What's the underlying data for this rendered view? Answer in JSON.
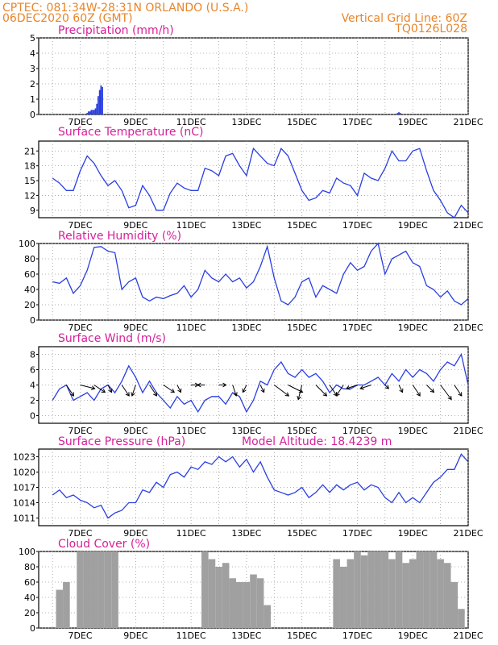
{
  "header": {
    "line1": "CPTEC:    081:34W-28:31N   ORLANDO (U.S.A.)",
    "line2": "06DEC2020 60Z (GMT)",
    "grid_note": "Vertical Grid Line: 60Z",
    "code": "TQ0126L028"
  },
  "colors": {
    "header": "#e8852a",
    "title": "#d6209a",
    "series": "#2a3fe0",
    "cloud": "#a0a0a0",
    "grid": "#9a9a9a"
  },
  "x_labels": [
    "7DEC",
    "9DEC",
    "11DEC",
    "13DEC",
    "15DEC",
    "17DEC",
    "19DEC",
    "21DEC"
  ],
  "chart_data": [
    {
      "id": "precip",
      "type": "bar",
      "title": "Precipitation (mm/h)",
      "x_unit": "days since 06DEC 00Z",
      "ylim": [
        0,
        5
      ],
      "yticks": [
        0,
        1,
        2,
        3,
        4,
        5
      ],
      "x": [
        1.25,
        1.3,
        1.35,
        1.4,
        1.45,
        1.5,
        1.55,
        1.6,
        1.65,
        1.7,
        1.75,
        1.8,
        12.45,
        12.5,
        12.55
      ],
      "values": [
        0.1,
        0.2,
        0.2,
        0.3,
        0.3,
        0.3,
        0.4,
        0.7,
        1.2,
        1.6,
        1.9,
        1.8,
        0.1,
        0.15,
        0.1
      ]
    },
    {
      "id": "temp",
      "type": "line",
      "title": "Surface Temperature (nC)",
      "ylim": [
        7.5,
        23
      ],
      "yticks": [
        9,
        12,
        15,
        18,
        21
      ],
      "x": [
        0,
        0.25,
        0.5,
        0.75,
        1.0,
        1.25,
        1.5,
        1.75,
        2.0,
        2.25,
        2.5,
        2.75,
        3.0,
        3.25,
        3.5,
        3.75,
        4.0,
        4.25,
        4.5,
        4.75,
        5.0,
        5.25,
        5.5,
        5.75,
        6.0,
        6.25,
        6.5,
        6.75,
        7.0,
        7.25,
        7.5,
        7.75,
        8.0,
        8.25,
        8.5,
        8.75,
        9.0,
        9.25,
        9.5,
        9.75,
        10.0,
        10.25,
        10.5,
        10.75,
        11.0,
        11.25,
        11.5,
        11.75,
        12.0,
        12.25,
        12.5,
        12.75,
        13.0,
        13.25,
        13.5,
        13.75,
        14.0,
        14.25,
        14.5,
        14.75,
        15.0
      ],
      "values": [
        15.5,
        14.5,
        13,
        13,
        17,
        20,
        18.5,
        16,
        14,
        15,
        13,
        9.5,
        10,
        14,
        12,
        9,
        9,
        12.5,
        14.5,
        13.5,
        13,
        13,
        17.5,
        17,
        16,
        20,
        20.5,
        18,
        16,
        21.5,
        20,
        18.5,
        18,
        21.5,
        20,
        16.5,
        13,
        11,
        11.5,
        13,
        12.5,
        15.5,
        14.5,
        14,
        12,
        16.5,
        15.5,
        15,
        17.5,
        21,
        19,
        19,
        21,
        21.5,
        17,
        13,
        11,
        8.5,
        7.5,
        10,
        8.5
      ]
    },
    {
      "id": "rh",
      "type": "line",
      "title": "Relative Humidity (%)",
      "ylim": [
        0,
        100
      ],
      "yticks": [
        0,
        20,
        40,
        60,
        80,
        100
      ],
      "x": [
        0,
        0.25,
        0.5,
        0.75,
        1.0,
        1.25,
        1.5,
        1.75,
        2.0,
        2.25,
        2.5,
        2.75,
        3.0,
        3.25,
        3.5,
        3.75,
        4.0,
        4.25,
        4.5,
        4.75,
        5.0,
        5.25,
        5.5,
        5.75,
        6.0,
        6.25,
        6.5,
        6.75,
        7.0,
        7.25,
        7.5,
        7.75,
        8.0,
        8.25,
        8.5,
        8.75,
        9.0,
        9.25,
        9.5,
        9.75,
        10.0,
        10.25,
        10.5,
        10.75,
        11.0,
        11.25,
        11.5,
        11.75,
        12.0,
        12.25,
        12.5,
        12.75,
        13.0,
        13.25,
        13.5,
        13.75,
        14.0,
        14.25,
        14.5,
        14.75,
        15.0
      ],
      "values": [
        50,
        48,
        55,
        35,
        45,
        65,
        95,
        96,
        90,
        88,
        40,
        50,
        55,
        30,
        25,
        30,
        28,
        32,
        35,
        45,
        30,
        40,
        65,
        55,
        50,
        60,
        50,
        55,
        42,
        50,
        70,
        96,
        55,
        25,
        20,
        30,
        50,
        55,
        30,
        45,
        40,
        35,
        60,
        75,
        65,
        70,
        90,
        100,
        60,
        80,
        85,
        90,
        75,
        70,
        45,
        40,
        30,
        38,
        25,
        20,
        28
      ]
    },
    {
      "id": "wind",
      "type": "line",
      "title": "Surface Wind (m/s)",
      "ylim": [
        -1,
        9
      ],
      "yticks": [
        0,
        2,
        4,
        6,
        8
      ],
      "x": [
        0,
        0.25,
        0.5,
        0.75,
        1.0,
        1.25,
        1.5,
        1.75,
        2.0,
        2.25,
        2.5,
        2.75,
        3.0,
        3.25,
        3.5,
        3.75,
        4.0,
        4.25,
        4.5,
        4.75,
        5.0,
        5.25,
        5.5,
        5.75,
        6.0,
        6.25,
        6.5,
        6.75,
        7.0,
        7.25,
        7.5,
        7.75,
        8.0,
        8.25,
        8.5,
        8.75,
        9.0,
        9.25,
        9.5,
        9.75,
        10.0,
        10.25,
        10.5,
        10.75,
        11.0,
        11.25,
        11.5,
        11.75,
        12.0,
        12.25,
        12.5,
        12.75,
        13.0,
        13.25,
        13.5,
        13.75,
        14.0,
        14.25,
        14.5,
        14.75,
        15.0
      ],
      "values": [
        2,
        3.5,
        4,
        2,
        2.5,
        3,
        2,
        3.5,
        4,
        3,
        4.5,
        6.5,
        5,
        3,
        4.5,
        3,
        2,
        1,
        2.5,
        1.5,
        2,
        0.5,
        2,
        2.5,
        2.5,
        1.5,
        3,
        2.5,
        0.5,
        2,
        4.5,
        4,
        6,
        7,
        5.5,
        5,
        6,
        5,
        5.5,
        4.5,
        3,
        4,
        3.5,
        3.5,
        4,
        4,
        4.5,
        5,
        4,
        5.5,
        4.5,
        6,
        5,
        6,
        5.5,
        4.5,
        6,
        7,
        6.5,
        8,
        4
      ],
      "arrows_x": [
        0.5,
        1.0,
        1.5,
        2.0,
        2.5,
        3.0,
        3.5,
        4.0,
        4.5,
        5.0,
        5.5,
        6.0,
        6.5,
        7.0,
        7.5,
        8.0,
        8.5,
        9.0,
        9.5,
        10.0,
        10.5,
        11.0,
        11.5,
        12.0,
        12.5,
        13.0,
        13.5,
        14.0,
        14.5
      ],
      "arrows_u": [
        2,
        4,
        3,
        1,
        2,
        -1,
        2,
        3,
        1,
        2,
        -2,
        2,
        1,
        -1,
        1,
        4,
        4,
        -1,
        3,
        2,
        -2,
        -3,
        -3,
        1,
        1,
        2,
        2,
        3,
        2
      ],
      "arrows_v": [
        -3,
        -1,
        -2,
        -2,
        -3,
        -3,
        -3,
        -2,
        -2,
        0,
        0,
        0,
        -3,
        -2,
        -2,
        -3,
        -2,
        -4,
        -3,
        -3,
        -3,
        -1,
        -1,
        -1,
        -2,
        -3,
        -2,
        -4,
        -3
      ]
    },
    {
      "id": "pressure",
      "type": "line",
      "title": "Surface Pressure (hPa)",
      "annotation": "Model Altitude: 18.4239 m",
      "ylim": [
        1009.5,
        1024.5
      ],
      "yticks": [
        1011,
        1014,
        1017,
        1020,
        1023
      ],
      "x": [
        0,
        0.25,
        0.5,
        0.75,
        1.0,
        1.25,
        1.5,
        1.75,
        2.0,
        2.25,
        2.5,
        2.75,
        3.0,
        3.25,
        3.5,
        3.75,
        4.0,
        4.25,
        4.5,
        4.75,
        5.0,
        5.25,
        5.5,
        5.75,
        6.0,
        6.25,
        6.5,
        6.75,
        7.0,
        7.25,
        7.5,
        7.75,
        8.0,
        8.25,
        8.5,
        8.75,
        9.0,
        9.25,
        9.5,
        9.75,
        10.0,
        10.25,
        10.5,
        10.75,
        11.0,
        11.25,
        11.5,
        11.75,
        12.0,
        12.25,
        12.5,
        12.75,
        13.0,
        13.25,
        13.5,
        13.75,
        14.0,
        14.25,
        14.5,
        14.75,
        15.0
      ],
      "values": [
        1015.5,
        1016.5,
        1015,
        1015.5,
        1014.5,
        1014,
        1013,
        1013.5,
        1011,
        1012,
        1012.5,
        1014,
        1014,
        1016.5,
        1016,
        1018,
        1017,
        1019.5,
        1020,
        1019,
        1021,
        1020.5,
        1022,
        1021.5,
        1023,
        1022,
        1023,
        1021,
        1022.5,
        1020,
        1022,
        1019,
        1016.5,
        1016,
        1015.5,
        1016,
        1017,
        1015,
        1016,
        1017.5,
        1016,
        1017.5,
        1016.5,
        1017.5,
        1018,
        1016.5,
        1017.5,
        1017,
        1015,
        1014,
        1016,
        1014,
        1015,
        1014,
        1016,
        1018,
        1019,
        1020.5,
        1020.5,
        1023.5,
        1022
      ]
    },
    {
      "id": "cloud",
      "type": "area",
      "title": "Cloud Cover (%)",
      "ylim": [
        0,
        100
      ],
      "yticks": [
        0,
        20,
        40,
        60,
        80,
        100
      ],
      "x": [
        0,
        0.25,
        0.5,
        0.75,
        1.0,
        1.25,
        1.5,
        1.75,
        2.0,
        2.25,
        2.5,
        2.75,
        3.0,
        3.25,
        3.5,
        3.75,
        4.0,
        4.25,
        4.5,
        4.75,
        5.0,
        5.25,
        5.5,
        5.75,
        6.0,
        6.25,
        6.5,
        6.75,
        7.0,
        7.25,
        7.5,
        7.75,
        8.0,
        8.25,
        8.5,
        8.75,
        9.0,
        9.25,
        9.5,
        9.75,
        10.0,
        10.25,
        10.5,
        10.75,
        11.0,
        11.25,
        11.5,
        11.75,
        12.0,
        12.25,
        12.5,
        12.75,
        13.0,
        13.25,
        13.5,
        13.75,
        14.0,
        14.25,
        14.5,
        14.75,
        15.0
      ],
      "values": [
        0,
        50,
        60,
        0,
        100,
        100,
        100,
        100,
        100,
        100,
        0,
        0,
        0,
        0,
        0,
        0,
        0,
        0,
        0,
        0,
        0,
        0,
        100,
        90,
        80,
        85,
        65,
        60,
        60,
        70,
        65,
        30,
        0,
        0,
        0,
        0,
        0,
        0,
        0,
        0,
        0,
        90,
        80,
        90,
        100,
        95,
        100,
        100,
        100,
        90,
        100,
        85,
        90,
        100,
        100,
        100,
        90,
        85,
        60,
        25,
        0
      ]
    }
  ]
}
